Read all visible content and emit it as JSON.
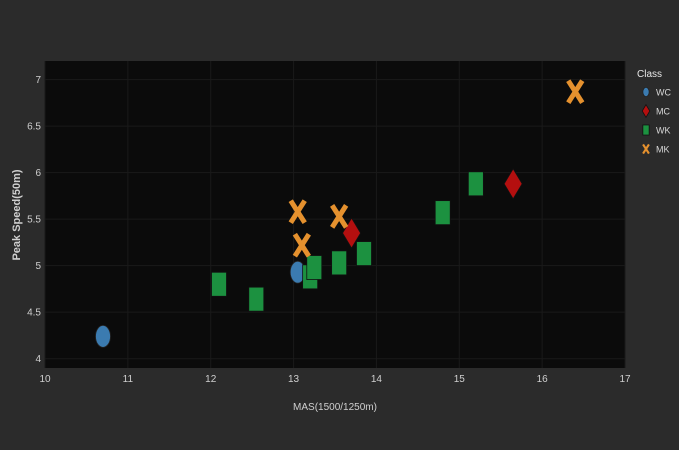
{
  "chart_data": {
    "type": "scatter",
    "xlabel": "MAS(1500/1250m)",
    "ylabel": "Peak Speed(50m)",
    "xlim": [
      10,
      17
    ],
    "ylim": [
      3.9,
      7.2
    ],
    "xticks": [
      10,
      11,
      12,
      13,
      14,
      15,
      16,
      17
    ],
    "yticks": [
      4,
      4.5,
      5,
      5.5,
      6,
      6.5,
      7
    ],
    "xtick_labels": [
      "10",
      "11",
      "12",
      "13",
      "14",
      "15",
      "16",
      "17"
    ],
    "ytick_labels": [
      "4",
      "4.5",
      "5",
      "5.5",
      "6",
      "6.5",
      "7"
    ],
    "grid": true,
    "legend": {
      "title": "Class",
      "position": "right",
      "entries": [
        "WC",
        "MC",
        "WK",
        "MK"
      ]
    },
    "series": [
      {
        "name": "WC",
        "marker": "ellipse",
        "color": "#3b7bb0",
        "points": [
          {
            "x": 10.7,
            "y": 4.24
          },
          {
            "x": 13.05,
            "y": 4.93
          }
        ]
      },
      {
        "name": "MC",
        "marker": "diamond",
        "color": "#b40f0f",
        "points": [
          {
            "x": 13.7,
            "y": 5.35
          },
          {
            "x": 15.65,
            "y": 5.88
          }
        ]
      },
      {
        "name": "WK",
        "marker": "square",
        "color": "#1c9140",
        "points": [
          {
            "x": 12.1,
            "y": 4.8
          },
          {
            "x": 12.55,
            "y": 4.64
          },
          {
            "x": 13.2,
            "y": 4.88
          },
          {
            "x": 13.25,
            "y": 4.98
          },
          {
            "x": 13.55,
            "y": 5.03
          },
          {
            "x": 13.85,
            "y": 5.13
          },
          {
            "x": 14.8,
            "y": 5.57
          },
          {
            "x": 15.2,
            "y": 5.88
          }
        ]
      },
      {
        "name": "MK",
        "marker": "x",
        "color": "#e5912e",
        "points": [
          {
            "x": 13.05,
            "y": 5.58
          },
          {
            "x": 13.1,
            "y": 5.22
          },
          {
            "x": 13.55,
            "y": 5.53
          },
          {
            "x": 16.4,
            "y": 6.87
          }
        ]
      }
    ]
  }
}
